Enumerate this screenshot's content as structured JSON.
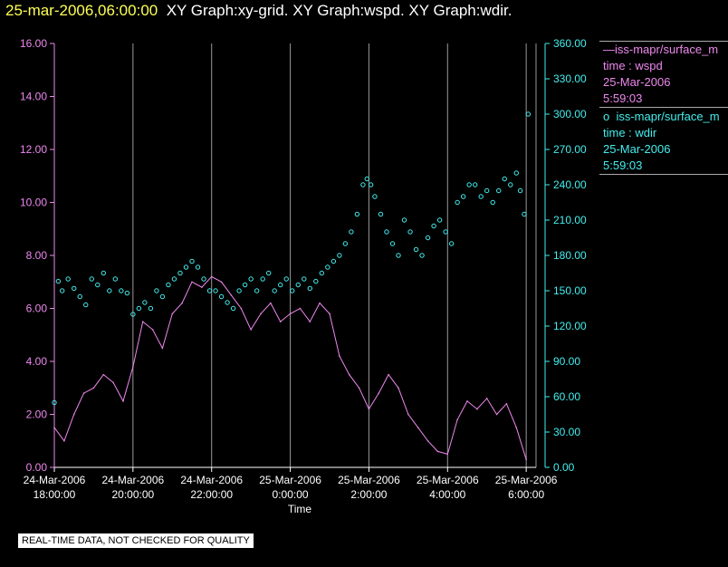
{
  "header": {
    "timestamp": "25-mar-2006,06:00:00",
    "rest": "XY Graph:xy-grid.  XY Graph:wspd.  XY Graph:wdir."
  },
  "legend": {
    "series1": {
      "prefix": "—",
      "name": "iss-mapr/surface_m",
      "line2": "time : wspd",
      "line3": "25-Mar-2006",
      "line4": "5:59:03"
    },
    "series2": {
      "prefix": "o",
      "name": "iss-mapr/surface_m",
      "line2": "time : wdir",
      "line3": "25-Mar-2006",
      "line4": "5:59:03"
    }
  },
  "disclaimer": "REAL-TIME DATA, NOT CHECKED FOR QUALITY",
  "colors": {
    "wspd": "#ee88ee",
    "wdir": "#44eeee",
    "grid": "#999999",
    "axis_left": "#ee88ee",
    "axis_right": "#44eeee"
  },
  "chart_data": {
    "type": "line",
    "xlabel": "Time",
    "x_range_hours": [
      18.0,
      30.25
    ],
    "x_ticks": [
      {
        "hour": 18,
        "date": "24-Mar-2006",
        "time": "18:00:00"
      },
      {
        "hour": 20,
        "date": "24-Mar-2006",
        "time": "20:00:00"
      },
      {
        "hour": 22,
        "date": "24-Mar-2006",
        "time": "22:00:00"
      },
      {
        "hour": 24,
        "date": "25-Mar-2006",
        "time": "0:00:00"
      },
      {
        "hour": 26,
        "date": "25-Mar-2006",
        "time": "2:00:00"
      },
      {
        "hour": 28,
        "date": "25-Mar-2006",
        "time": "4:00:00"
      },
      {
        "hour": 30,
        "date": "25-Mar-2006",
        "time": "6:00:00"
      }
    ],
    "y_left": {
      "label": "wspd",
      "range": [
        0,
        16
      ],
      "ticks": [
        "0.00",
        "2.00",
        "4.00",
        "6.00",
        "8.00",
        "10.00",
        "12.00",
        "14.00",
        "16.00"
      ]
    },
    "y_right": {
      "label": "wdir",
      "range": [
        0,
        360
      ],
      "ticks": [
        "0.00",
        "30.00",
        "60.00",
        "90.00",
        "120.00",
        "150.00",
        "180.00",
        "210.00",
        "240.00",
        "270.00",
        "300.00",
        "330.00",
        "360.00"
      ]
    },
    "series": [
      {
        "name": "wspd",
        "style": "line",
        "x": [
          18.0,
          18.25,
          18.5,
          18.75,
          19.0,
          19.25,
          19.5,
          19.75,
          20.0,
          20.25,
          20.5,
          20.75,
          21.0,
          21.25,
          21.5,
          21.75,
          22.0,
          22.25,
          22.5,
          22.75,
          23.0,
          23.25,
          23.5,
          23.75,
          24.0,
          24.25,
          24.5,
          24.75,
          25.0,
          25.25,
          25.5,
          25.75,
          26.0,
          26.25,
          26.5,
          26.75,
          27.0,
          27.25,
          27.5,
          27.75,
          28.0,
          28.25,
          28.5,
          28.75,
          29.0,
          29.25,
          29.5,
          29.75,
          30.0
        ],
        "values": [
          1.5,
          1.0,
          2.0,
          2.8,
          3.0,
          3.5,
          3.2,
          2.5,
          3.8,
          5.5,
          5.2,
          4.5,
          5.8,
          6.2,
          7.0,
          6.8,
          7.2,
          7.0,
          6.5,
          6.0,
          5.2,
          5.8,
          6.2,
          5.5,
          5.8,
          6.0,
          5.5,
          6.2,
          5.8,
          4.2,
          3.5,
          3.0,
          2.2,
          2.8,
          3.5,
          3.0,
          2.0,
          1.5,
          1.0,
          0.6,
          0.5,
          1.8,
          2.5,
          2.2,
          2.6,
          2.0,
          2.4,
          1.5,
          0.3
        ]
      },
      {
        "name": "wdir",
        "style": "scatter",
        "x": [
          18.0,
          18.1,
          18.2,
          18.35,
          18.5,
          18.65,
          18.8,
          18.95,
          19.1,
          19.25,
          19.4,
          19.55,
          19.7,
          19.85,
          20.0,
          20.15,
          20.3,
          20.45,
          20.6,
          20.75,
          20.9,
          21.05,
          21.2,
          21.35,
          21.5,
          21.65,
          21.8,
          21.95,
          22.1,
          22.25,
          22.4,
          22.55,
          22.7,
          22.85,
          23.0,
          23.15,
          23.3,
          23.45,
          23.6,
          23.75,
          23.9,
          24.05,
          24.2,
          24.35,
          24.5,
          24.65,
          24.8,
          24.95,
          25.1,
          25.25,
          25.4,
          25.55,
          25.7,
          25.85,
          25.95,
          26.05,
          26.15,
          26.3,
          26.45,
          26.6,
          26.75,
          26.9,
          27.05,
          27.2,
          27.35,
          27.5,
          27.65,
          27.8,
          27.95,
          28.1,
          28.25,
          28.4,
          28.55,
          28.7,
          28.85,
          29.0,
          29.15,
          29.3,
          29.45,
          29.6,
          29.75,
          29.85,
          29.95,
          30.05
        ],
        "values": [
          55,
          158,
          150,
          160,
          152,
          145,
          138,
          160,
          155,
          165,
          150,
          160,
          150,
          148,
          130,
          135,
          140,
          135,
          150,
          145,
          155,
          160,
          165,
          170,
          175,
          170,
          160,
          150,
          150,
          145,
          140,
          135,
          150,
          155,
          160,
          150,
          160,
          165,
          150,
          155,
          160,
          150,
          155,
          160,
          152,
          158,
          165,
          170,
          175,
          180,
          190,
          200,
          215,
          240,
          245,
          240,
          230,
          215,
          200,
          190,
          180,
          210,
          200,
          185,
          180,
          195,
          205,
          210,
          200,
          190,
          225,
          230,
          240,
          240,
          230,
          235,
          225,
          235,
          245,
          240,
          250,
          235,
          215,
          300
        ]
      }
    ]
  }
}
